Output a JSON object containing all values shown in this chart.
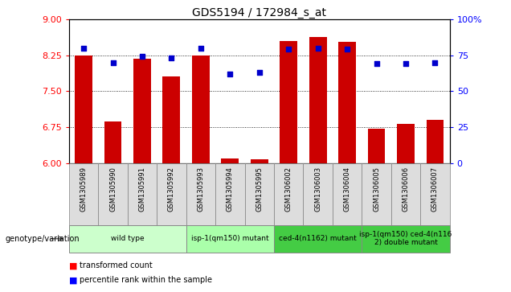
{
  "title": "GDS5194 / 172984_s_at",
  "samples": [
    "GSM1305989",
    "GSM1305990",
    "GSM1305991",
    "GSM1305992",
    "GSM1305993",
    "GSM1305994",
    "GSM1305995",
    "GSM1306002",
    "GSM1306003",
    "GSM1306004",
    "GSM1306005",
    "GSM1306006",
    "GSM1306007"
  ],
  "transformed_count": [
    8.25,
    6.88,
    8.18,
    7.8,
    8.24,
    6.1,
    6.08,
    8.55,
    8.62,
    8.52,
    6.72,
    6.83,
    6.9
  ],
  "percentile_rank": [
    80,
    70,
    74,
    73,
    80,
    62,
    63,
    79,
    80,
    79,
    69,
    69,
    70
  ],
  "ylim_left": [
    6,
    9
  ],
  "ylim_right": [
    0,
    100
  ],
  "yticks_left": [
    6,
    6.75,
    7.5,
    8.25,
    9
  ],
  "yticks_right": [
    0,
    25,
    50,
    75,
    100
  ],
  "bar_color": "#cc0000",
  "dot_color": "#0000cc",
  "groups": [
    {
      "label": "wild type",
      "start": 0,
      "end": 3,
      "color": "#ccffcc"
    },
    {
      "label": "isp-1(qm150) mutant",
      "start": 4,
      "end": 6,
      "color": "#aaffaa"
    },
    {
      "label": "ced-4(n1162) mutant",
      "start": 7,
      "end": 9,
      "color": "#44cc44"
    },
    {
      "label": "isp-1(qm150) ced-4(n116\n2) double mutant",
      "start": 10,
      "end": 12,
      "color": "#44cc44"
    }
  ],
  "grid_values": [
    6.75,
    7.5,
    8.25
  ],
  "bar_width": 0.6,
  "background_color": "#ffffff",
  "cell_color": "#dddddd",
  "title_fontsize": 10
}
